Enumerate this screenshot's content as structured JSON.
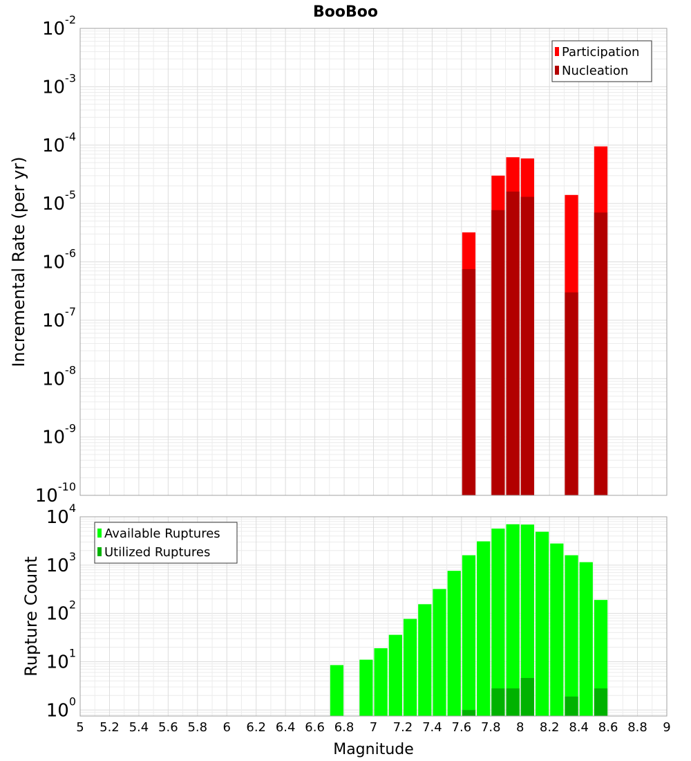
{
  "chart_data": [
    {
      "type": "bar",
      "title": "BooBoo",
      "xlabel": "",
      "ylabel": "Incremental Rate (per yr)",
      "yscale": "log",
      "ylim": [
        1e-10,
        0.01
      ],
      "xlim": [
        5,
        9
      ],
      "bar_width": 0.1,
      "grid": true,
      "legend_position": "top-right",
      "y_ticks": [
        {
          "base": "10",
          "exp": "-10"
        },
        {
          "base": "10",
          "exp": "-9"
        },
        {
          "base": "10",
          "exp": "-8"
        },
        {
          "base": "10",
          "exp": "-7"
        },
        {
          "base": "10",
          "exp": "-6"
        },
        {
          "base": "10",
          "exp": "-5"
        },
        {
          "base": "10",
          "exp": "-4"
        },
        {
          "base": "10",
          "exp": "-3"
        },
        {
          "base": "10",
          "exp": "-2"
        }
      ],
      "series": [
        {
          "name": "Participation",
          "color": "#ff0000",
          "points": [
            {
              "x": 7.65,
              "y": 3.2e-06
            },
            {
              "x": 7.85,
              "y": 3e-05
            },
            {
              "x": 7.95,
              "y": 6.2e-05
            },
            {
              "x": 8.05,
              "y": 5.9e-05
            },
            {
              "x": 8.35,
              "y": 1.4e-05
            },
            {
              "x": 8.55,
              "y": 9.5e-05
            }
          ]
        },
        {
          "name": "Nucleation",
          "color": "#b20000",
          "points": [
            {
              "x": 7.65,
              "y": 7.5e-07
            },
            {
              "x": 7.85,
              "y": 7.7e-06
            },
            {
              "x": 7.95,
              "y": 1.6e-05
            },
            {
              "x": 8.05,
              "y": 1.3e-05
            },
            {
              "x": 8.35,
              "y": 3e-07
            },
            {
              "x": 8.55,
              "y": 7e-06
            }
          ]
        }
      ]
    },
    {
      "type": "bar",
      "title": "",
      "xlabel": "Magnitude",
      "ylabel": "Rupture Count",
      "yscale": "log",
      "ylim": [
        0.75,
        10000
      ],
      "xlim": [
        5,
        9
      ],
      "bar_width": 0.1,
      "grid": true,
      "legend_position": "top-left",
      "x_ticks": [
        "5",
        "5.2",
        "5.4",
        "5.6",
        "5.8",
        "6",
        "6.2",
        "6.4",
        "6.6",
        "6.8",
        "7",
        "7.2",
        "7.4",
        "7.6",
        "7.8",
        "8",
        "8.2",
        "8.4",
        "8.6",
        "8.8",
        "9"
      ],
      "y_ticks": [
        {
          "base": "10",
          "exp": "0"
        },
        {
          "base": "10",
          "exp": "1"
        },
        {
          "base": "10",
          "exp": "2"
        },
        {
          "base": "10",
          "exp": "3"
        },
        {
          "base": "10",
          "exp": "4"
        }
      ],
      "series": [
        {
          "name": "Available Ruptures",
          "color": "#00ff00",
          "points": [
            {
              "x": 6.75,
              "y": 8.5
            },
            {
              "x": 6.95,
              "y": 11
            },
            {
              "x": 7.05,
              "y": 19
            },
            {
              "x": 7.15,
              "y": 36
            },
            {
              "x": 7.25,
              "y": 77
            },
            {
              "x": 7.35,
              "y": 155
            },
            {
              "x": 7.45,
              "y": 320
            },
            {
              "x": 7.55,
              "y": 760
            },
            {
              "x": 7.65,
              "y": 1600
            },
            {
              "x": 7.75,
              "y": 3100
            },
            {
              "x": 7.85,
              "y": 5700
            },
            {
              "x": 7.95,
              "y": 7000
            },
            {
              "x": 8.05,
              "y": 6900
            },
            {
              "x": 8.15,
              "y": 4900
            },
            {
              "x": 8.25,
              "y": 2800
            },
            {
              "x": 8.35,
              "y": 1600
            },
            {
              "x": 8.45,
              "y": 1150
            },
            {
              "x": 8.55,
              "y": 190
            }
          ]
        },
        {
          "name": "Utilized Ruptures",
          "color": "#00b200",
          "points": [
            {
              "x": 7.65,
              "y": 1
            },
            {
              "x": 7.85,
              "y": 2.8
            },
            {
              "x": 7.95,
              "y": 2.8
            },
            {
              "x": 8.05,
              "y": 4.6
            },
            {
              "x": 8.35,
              "y": 1.9
            },
            {
              "x": 8.55,
              "y": 2.8
            }
          ]
        }
      ]
    }
  ]
}
